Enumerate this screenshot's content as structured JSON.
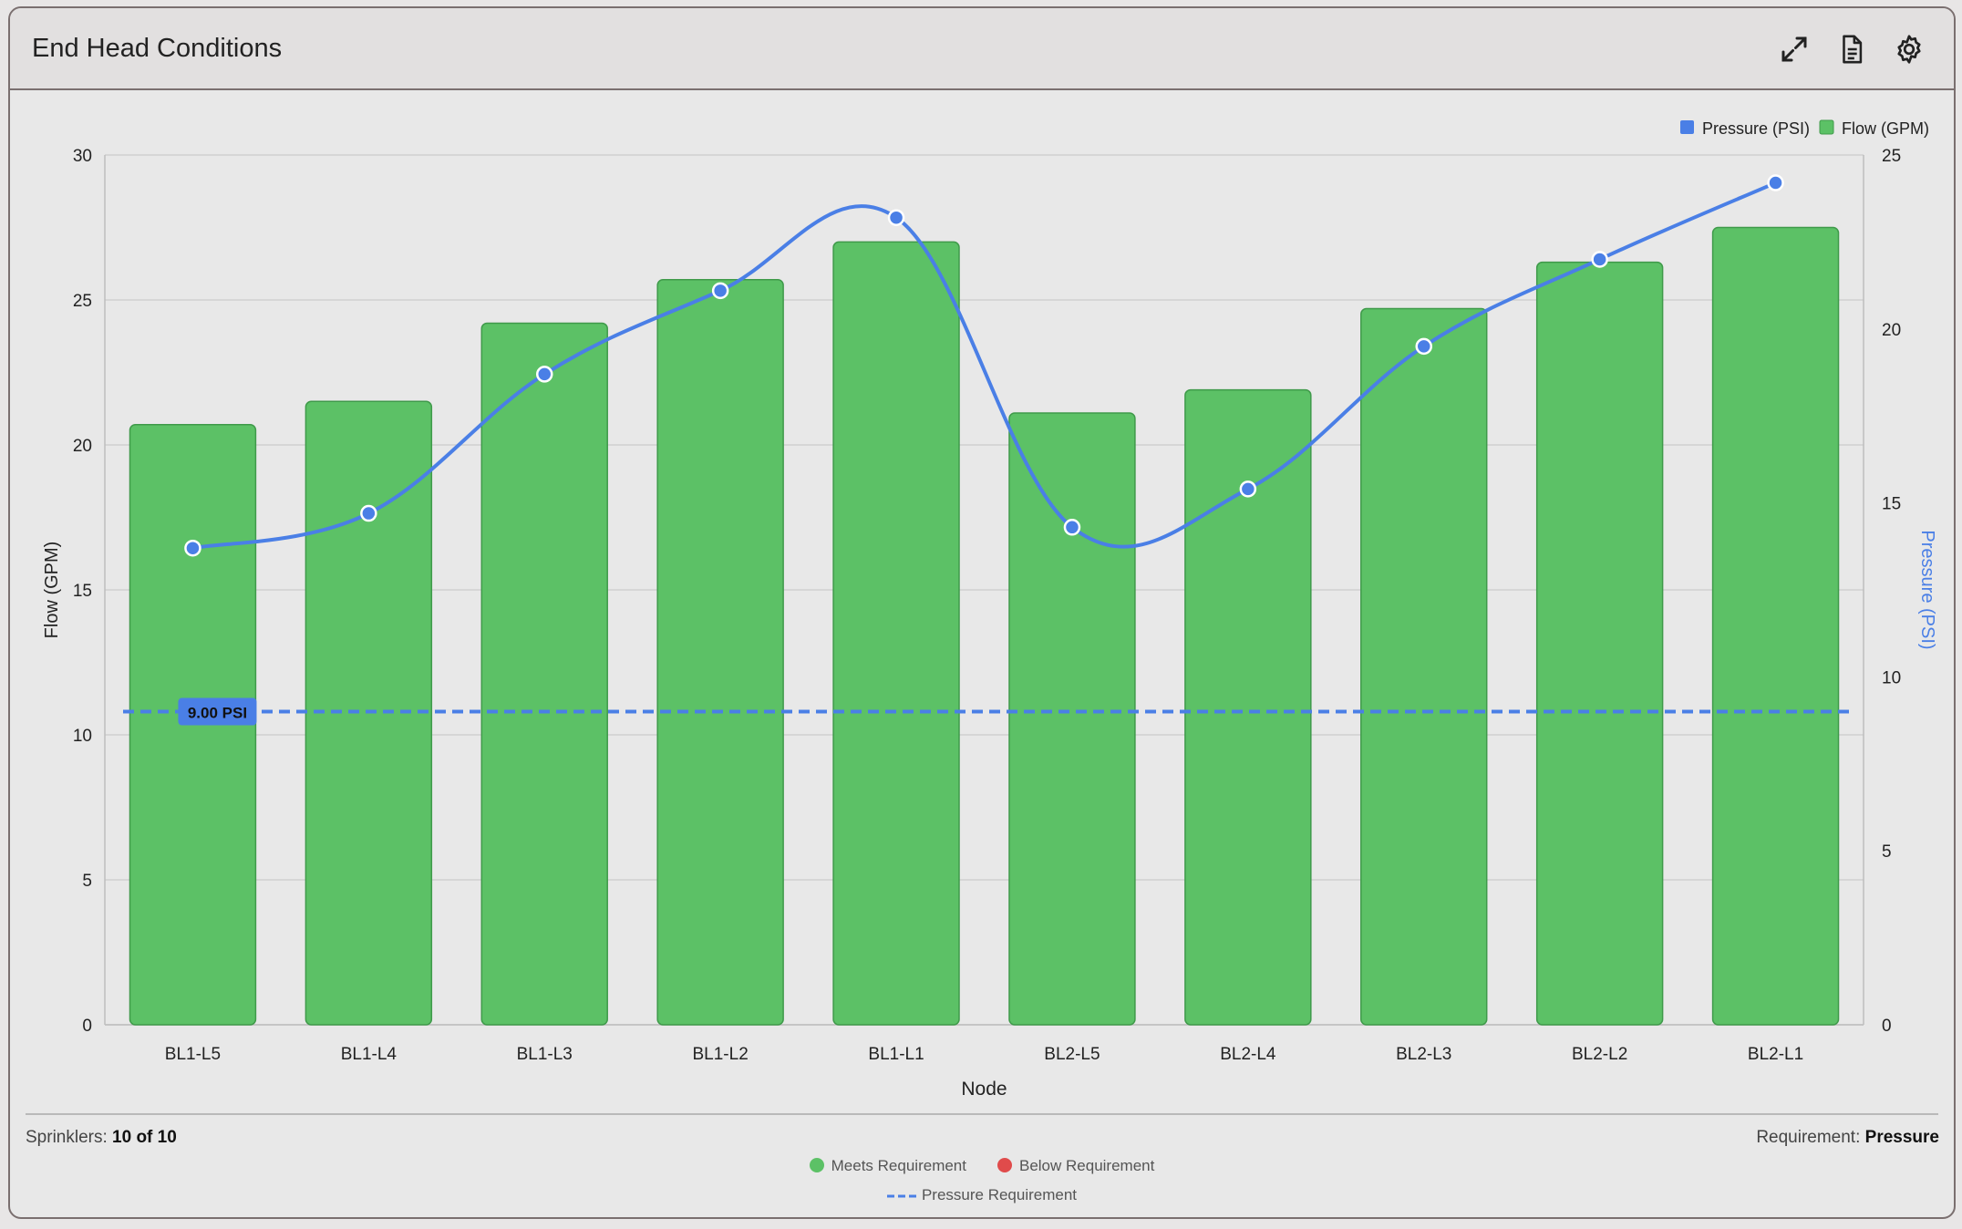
{
  "header": {
    "title": "End Head Conditions",
    "icons": [
      "expand-icon",
      "document-icon",
      "gear-icon"
    ]
  },
  "legend": {
    "pressure": "Pressure (PSI)",
    "flow": "Flow (GPM)"
  },
  "footer": {
    "sprinklers_label": "Sprinklers:",
    "sprinklers_value": "10 of 10",
    "requirement_label": "Requirement:",
    "requirement_value": "Pressure",
    "meets": "Meets Requirement",
    "below": "Below Requirement",
    "pressure_req": "Pressure Requirement"
  },
  "colors": {
    "bar": "#5cc166",
    "bar_stroke": "#3f9a4a",
    "line": "#4a7fe6",
    "below": "#e04b4b"
  },
  "chart_data": {
    "type": "bar",
    "categories": [
      "BL1-L5",
      "BL1-L4",
      "BL1-L3",
      "BL1-L2",
      "BL1-L1",
      "BL2-L5",
      "BL2-L4",
      "BL2-L3",
      "BL2-L2",
      "BL2-L1"
    ],
    "series": [
      {
        "name": "Flow (GPM)",
        "type": "bar",
        "axis": "left",
        "values": [
          20.7,
          21.5,
          24.2,
          25.7,
          27.0,
          21.1,
          21.9,
          24.7,
          26.3,
          27.5
        ]
      },
      {
        "name": "Pressure (PSI)",
        "type": "line",
        "axis": "right",
        "values": [
          13.7,
          14.7,
          18.7,
          21.1,
          23.2,
          14.3,
          15.4,
          19.5,
          22.0,
          24.2
        ]
      }
    ],
    "xlabel": "Node",
    "ylabel": "Flow (GPM)",
    "y2label": "Pressure (PSI)",
    "ylim": [
      0,
      30
    ],
    "y2lim": [
      0,
      25
    ],
    "yticks": [
      0,
      5,
      10,
      15,
      20,
      25,
      30
    ],
    "y2ticks": [
      0,
      5,
      10,
      15,
      20,
      25
    ],
    "requirement_line": {
      "value": 9.0,
      "axis": "right",
      "label": "9.00 PSI"
    },
    "grid": true,
    "legend_position": "top-right"
  }
}
